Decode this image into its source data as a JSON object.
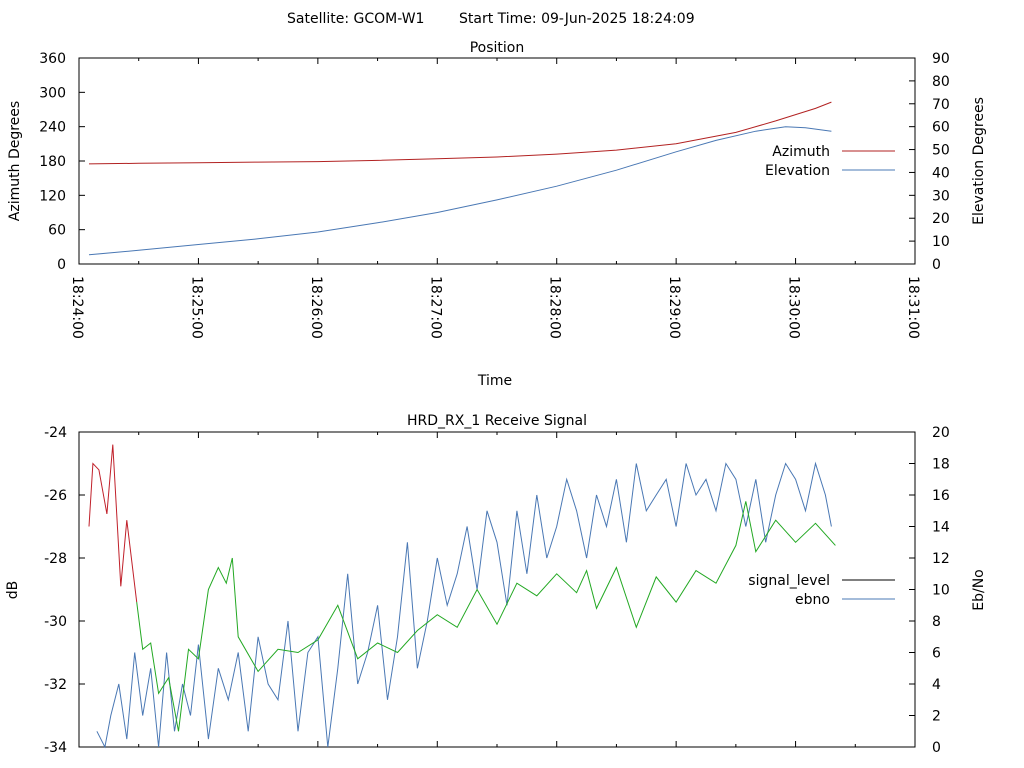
{
  "header": {
    "satellite": "Satellite: GCOM-W1",
    "start_time": "Start Time: 09-Jun-2025 18:24:09"
  },
  "colors": {
    "azimuth": "#b22222",
    "elevation": "#4a78b4",
    "signal_level": "#000000",
    "signal_red": "#c0202a",
    "signal_green": "#22a822",
    "ebno": "#4a78b4"
  },
  "chart_data": [
    {
      "type": "line",
      "title": "Position",
      "xlabel": "Time",
      "ylabel": "Azimuth Degrees",
      "y2label": "Elevation Degrees",
      "xlim": [
        "18:24:00",
        "18:31:00"
      ],
      "x_ticks": [
        "18:24:00",
        "18:25:00",
        "18:26:00",
        "18:27:00",
        "18:28:00",
        "18:29:00",
        "18:30:00",
        "18:31:00"
      ],
      "ylim": [
        0,
        360
      ],
      "y_ticks": [
        "0",
        "60",
        "120",
        "180",
        "240",
        "300",
        "360"
      ],
      "y2lim": [
        0,
        90
      ],
      "y2_ticks": [
        "0",
        "10",
        "20",
        "30",
        "40",
        "50",
        "60",
        "70",
        "80",
        "90"
      ],
      "legend_position": "right",
      "series": [
        {
          "name": "Azimuth",
          "axis": "y",
          "x": [
            "18:24:05",
            "18:24:30",
            "18:25:00",
            "18:25:30",
            "18:26:00",
            "18:26:30",
            "18:27:00",
            "18:27:30",
            "18:28:00",
            "18:28:30",
            "18:29:00",
            "18:29:30",
            "18:29:50",
            "18:30:10",
            "18:30:18"
          ],
          "values": [
            175,
            176,
            177,
            178,
            179,
            181,
            184,
            187,
            192,
            199,
            210,
            230,
            250,
            272,
            283
          ]
        },
        {
          "name": "Elevation",
          "axis": "y2",
          "x": [
            "18:24:05",
            "18:24:30",
            "18:25:00",
            "18:25:30",
            "18:26:00",
            "18:26:30",
            "18:27:00",
            "18:27:30",
            "18:28:00",
            "18:28:30",
            "18:29:00",
            "18:29:20",
            "18:29:40",
            "18:29:55",
            "18:30:05",
            "18:30:18"
          ],
          "values": [
            4,
            6,
            8.5,
            11,
            14,
            18,
            22.5,
            28,
            34,
            41,
            49,
            54,
            58,
            60,
            59.5,
            58
          ]
        }
      ]
    },
    {
      "type": "line",
      "title": "HRD_RX_1 Receive Signal",
      "ylabel": "dB",
      "y2label": "Eb/No",
      "xlim": [
        "18:24:00",
        "18:31:00"
      ],
      "ylim": [
        -34,
        -24
      ],
      "y_ticks": [
        "-24",
        "-26",
        "-28",
        "-30",
        "-32",
        "-34"
      ],
      "y2lim": [
        0,
        20
      ],
      "y2_ticks": [
        "0",
        "2",
        "4",
        "6",
        "8",
        "10",
        "12",
        "14",
        "16",
        "18",
        "20"
      ],
      "legend_position": "right",
      "series": [
        {
          "name": "signal_level",
          "axis": "y",
          "x": [
            "18:24:05",
            "18:24:07",
            "18:24:10",
            "18:24:14",
            "18:24:17",
            "18:24:21",
            "18:24:24",
            "18:24:29",
            "18:24:32",
            "18:24:36",
            "18:24:40",
            "18:24:45",
            "18:24:50",
            "18:24:55",
            "18:25:00",
            "18:25:05",
            "18:25:10",
            "18:25:14",
            "18:25:17",
            "18:25:20",
            "18:25:30",
            "18:25:40",
            "18:25:50",
            "18:26:00",
            "18:26:10",
            "18:26:20",
            "18:26:30",
            "18:26:40",
            "18:26:50",
            "18:27:00",
            "18:27:10",
            "18:27:20",
            "18:27:30",
            "18:27:40",
            "18:27:50",
            "18:28:00",
            "18:28:10",
            "18:28:15",
            "18:28:20",
            "18:28:30",
            "18:28:40",
            "18:28:50",
            "18:29:00",
            "18:29:10",
            "18:29:20",
            "18:29:30",
            "18:29:35",
            "18:29:40",
            "18:29:50",
            "18:30:00",
            "18:30:10",
            "18:30:20"
          ],
          "values": [
            -27.0,
            -25.0,
            -25.2,
            -26.6,
            -24.4,
            -28.9,
            -26.8,
            -29.4,
            -30.9,
            -30.7,
            -32.3,
            -31.8,
            -33.5,
            -30.9,
            -31.2,
            -29.0,
            -28.3,
            -28.8,
            -28.0,
            -30.5,
            -31.6,
            -30.9,
            -31.0,
            -30.6,
            -29.5,
            -31.2,
            -30.7,
            -31.0,
            -30.3,
            -29.8,
            -30.2,
            -29.0,
            -30.1,
            -28.8,
            -29.2,
            -28.5,
            -29.1,
            -28.4,
            -29.6,
            -28.3,
            -30.2,
            -28.6,
            -29.4,
            -28.4,
            -28.8,
            -27.6,
            -26.2,
            -27.8,
            -26.8,
            -27.5,
            -26.9,
            -27.6
          ]
        },
        {
          "name": "ebno",
          "axis": "y2",
          "x": [
            "18:24:09",
            "18:24:13",
            "18:24:16",
            "18:24:20",
            "18:24:24",
            "18:24:28",
            "18:24:32",
            "18:24:36",
            "18:24:40",
            "18:24:44",
            "18:24:48",
            "18:24:52",
            "18:24:56",
            "18:25:00",
            "18:25:05",
            "18:25:10",
            "18:25:15",
            "18:25:20",
            "18:25:25",
            "18:25:30",
            "18:25:35",
            "18:25:40",
            "18:25:45",
            "18:25:50",
            "18:25:55",
            "18:26:00",
            "18:26:05",
            "18:26:10",
            "18:26:15",
            "18:26:20",
            "18:26:25",
            "18:26:30",
            "18:26:35",
            "18:26:40",
            "18:26:45",
            "18:26:50",
            "18:26:55",
            "18:27:00",
            "18:27:05",
            "18:27:10",
            "18:27:15",
            "18:27:20",
            "18:27:25",
            "18:27:30",
            "18:27:35",
            "18:27:40",
            "18:27:45",
            "18:27:50",
            "18:27:55",
            "18:28:00",
            "18:28:05",
            "18:28:10",
            "18:28:15",
            "18:28:20",
            "18:28:25",
            "18:28:30",
            "18:28:35",
            "18:28:40",
            "18:28:45",
            "18:28:50",
            "18:28:55",
            "18:29:00",
            "18:29:05",
            "18:29:10",
            "18:29:15",
            "18:29:20",
            "18:29:25",
            "18:29:30",
            "18:29:35",
            "18:29:40",
            "18:29:45",
            "18:29:50",
            "18:29:55",
            "18:30:00",
            "18:30:05",
            "18:30:10",
            "18:30:15",
            "18:30:18"
          ],
          "values": [
            1,
            0,
            2,
            4,
            0.5,
            6,
            2,
            5,
            0,
            6,
            1,
            4,
            2,
            6.5,
            0.5,
            5,
            3,
            6,
            1,
            7,
            4,
            3,
            8,
            1,
            6,
            7,
            0,
            5,
            11,
            4,
            6,
            9,
            3,
            7,
            13,
            5,
            8,
            12,
            9,
            11,
            14,
            10,
            15,
            13,
            9,
            15,
            11,
            16,
            12,
            14,
            17,
            15,
            12,
            16,
            14,
            17,
            13,
            18,
            15,
            16,
            17,
            14,
            18,
            16,
            17,
            15,
            18,
            17,
            14,
            17,
            13,
            16,
            18,
            17,
            15,
            18,
            16,
            14
          ]
        }
      ]
    }
  ]
}
